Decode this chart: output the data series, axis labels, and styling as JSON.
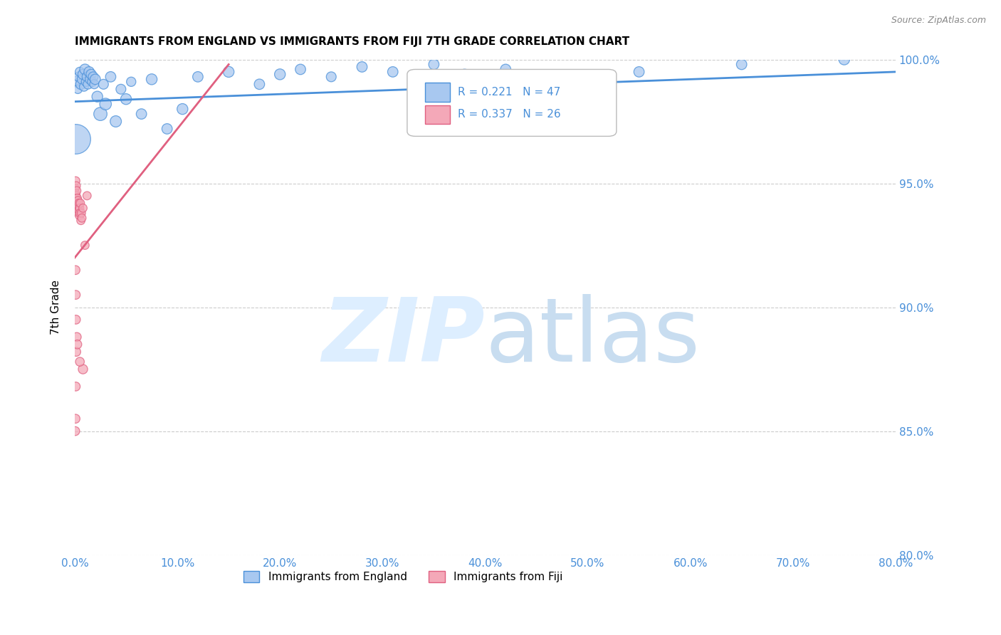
{
  "title": "IMMIGRANTS FROM ENGLAND VS IMMIGRANTS FROM FIJI 7TH GRADE CORRELATION CHART",
  "source": "Source: ZipAtlas.com",
  "ylabel": "7th Grade",
  "xlim": [
    0.0,
    80.0
  ],
  "ylim": [
    80.0,
    100.0
  ],
  "legend_label1": "Immigrants from England",
  "legend_label2": "Immigrants from Fiji",
  "R1": 0.221,
  "N1": 47,
  "R2": 0.337,
  "N2": 26,
  "color_england": "#a8c8f0",
  "color_fiji": "#f4a8b8",
  "color_england_line": "#4a90d9",
  "color_fiji_line": "#e06080",
  "watermark_zip": "ZIP",
  "watermark_atlas": "atlas",
  "watermark_color": "#ddeeff",
  "england_x": [
    0.2,
    0.3,
    0.4,
    0.5,
    0.6,
    0.7,
    0.8,
    0.9,
    1.0,
    1.1,
    1.2,
    1.3,
    1.4,
    1.5,
    1.6,
    1.7,
    1.8,
    1.9,
    2.0,
    2.2,
    2.5,
    2.8,
    3.0,
    3.5,
    4.0,
    4.5,
    5.0,
    5.5,
    6.5,
    7.5,
    9.0,
    10.5,
    12.0,
    15.0,
    18.0,
    20.0,
    22.0,
    25.0,
    28.0,
    31.0,
    35.0,
    38.0,
    42.0,
    45.0,
    55.0,
    65.0,
    75.0
  ],
  "england_y": [
    99.1,
    98.8,
    99.3,
    99.5,
    99.0,
    99.2,
    99.4,
    98.9,
    99.6,
    99.1,
    99.3,
    99.0,
    99.5,
    99.2,
    99.4,
    99.1,
    99.3,
    99.0,
    99.2,
    98.5,
    97.8,
    99.0,
    98.2,
    99.3,
    97.5,
    98.8,
    98.4,
    99.1,
    97.8,
    99.2,
    97.2,
    98.0,
    99.3,
    99.5,
    99.0,
    99.4,
    99.6,
    99.3,
    99.7,
    99.5,
    99.8,
    99.4,
    99.6,
    99.2,
    99.5,
    99.8,
    100.0
  ],
  "england_size": [
    120,
    80,
    100,
    90,
    110,
    95,
    105,
    85,
    115,
    90,
    100,
    95,
    110,
    100,
    105,
    90,
    100,
    85,
    110,
    120,
    180,
    100,
    140,
    110,
    130,
    100,
    120,
    90,
    110,
    120,
    110,
    120,
    110,
    120,
    110,
    120,
    110,
    100,
    110,
    110,
    110,
    110,
    110,
    110,
    110,
    110,
    120
  ],
  "england_x_large": [
    0.05
  ],
  "england_y_large": [
    96.8
  ],
  "england_size_large": [
    900
  ],
  "fiji_x": [
    0.05,
    0.08,
    0.1,
    0.12,
    0.15,
    0.18,
    0.2,
    0.22,
    0.25,
    0.28,
    0.3,
    0.32,
    0.35,
    0.38,
    0.4,
    0.42,
    0.45,
    0.48,
    0.5,
    0.55,
    0.6,
    0.65,
    0.7,
    0.8,
    1.0,
    1.2
  ],
  "fiji_y": [
    94.8,
    94.6,
    95.1,
    94.5,
    94.9,
    94.3,
    94.7,
    94.1,
    94.4,
    94.2,
    94.0,
    94.3,
    93.8,
    94.1,
    93.9,
    94.2,
    93.7,
    94.0,
    93.8,
    94.2,
    93.5,
    93.8,
    93.6,
    94.0,
    92.5,
    94.5
  ],
  "fiji_x_isolated": [
    0.08,
    0.1,
    0.12,
    0.8,
    0.5,
    0.15,
    0.1,
    0.08,
    0.05,
    0.2,
    0.25
  ],
  "fiji_y_isolated": [
    91.5,
    90.5,
    89.5,
    87.5,
    87.8,
    88.2,
    86.8,
    85.5,
    85.0,
    88.8,
    88.5
  ],
  "fiji_size": [
    70,
    70,
    70,
    70,
    70,
    70,
    70,
    70,
    70,
    70,
    70,
    70,
    70,
    70,
    70,
    70,
    70,
    70,
    70,
    70,
    70,
    70,
    70,
    70,
    70,
    70
  ],
  "fiji_size_isolated": [
    80,
    80,
    80,
    90,
    80,
    80,
    80,
    80,
    80,
    80,
    80
  ]
}
